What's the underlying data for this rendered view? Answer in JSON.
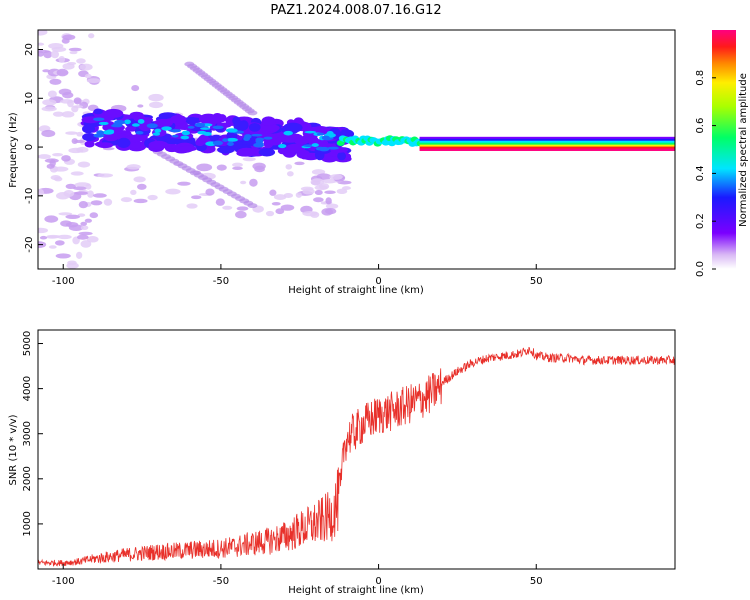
{
  "figure": {
    "title": "PAZ1.2024.008.07.16.G12"
  },
  "chart_data": [
    {
      "type": "heatmap",
      "title": "",
      "xlabel": "Height of straight line (km)",
      "ylabel": "Frequency (Hz)",
      "xlim": [
        -108,
        94
      ],
      "ylim": [
        -25,
        24
      ],
      "xticks": [
        -100,
        -50,
        0,
        50
      ],
      "yticks": [
        -20,
        -10,
        0,
        10,
        20
      ],
      "colorbar": {
        "label": "Normalized spectral amplitude",
        "range": [
          0,
          1
        ],
        "ticks": [
          0.0,
          0.2,
          0.4,
          0.6,
          0.8
        ]
      },
      "features": [
        {
          "name": "flat carrier",
          "x_range": [
            13,
            94
          ],
          "frequency": 0.7
        },
        {
          "name": "blob cluster",
          "x_range": [
            -92,
            -10
          ],
          "frequency_range": [
            -3,
            8
          ]
        },
        {
          "name": "merging ridge",
          "x_range": [
            -12,
            14
          ],
          "frequency_range": [
            0,
            3
          ]
        }
      ],
      "grid": false
    },
    {
      "type": "line",
      "title": "",
      "xlabel": "Height of straight line (km)",
      "ylabel": "SNR (10 * v/v)",
      "xlim": [
        -108,
        94
      ],
      "ylim": [
        0,
        5300
      ],
      "xticks": [
        -100,
        -50,
        0,
        50
      ],
      "yticks": [
        1000,
        2000,
        3000,
        4000,
        5000
      ],
      "color": "#e8302a",
      "x": [
        -108,
        -100,
        -95,
        -90,
        -85,
        -80,
        -75,
        -70,
        -65,
        -60,
        -55,
        -50,
        -45,
        -40,
        -35,
        -30,
        -25,
        -20,
        -15,
        -12,
        -11,
        -10,
        -8,
        -5,
        0,
        5,
        10,
        15,
        20,
        25,
        30,
        35,
        40,
        45,
        48,
        50,
        55,
        60,
        65,
        70,
        75,
        80,
        85,
        90,
        94
      ],
      "values": [
        150,
        150,
        180,
        250,
        300,
        350,
        380,
        420,
        430,
        460,
        480,
        500,
        550,
        620,
        680,
        780,
        950,
        1100,
        1300,
        1800,
        2800,
        3000,
        3100,
        3300,
        3500,
        3600,
        3750,
        3900,
        4150,
        4400,
        4600,
        4700,
        4750,
        4800,
        4900,
        4750,
        4700,
        4700,
        4650,
        4650,
        4650,
        4650,
        4650,
        4650,
        4650
      ],
      "grid": false
    }
  ]
}
